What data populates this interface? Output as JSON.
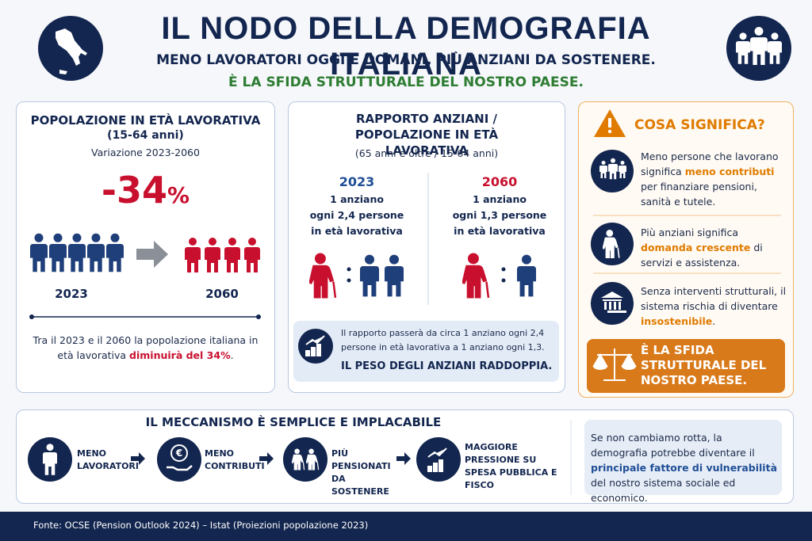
{
  "header": {
    "title": "IL NODO DELLA DEMOGRAFIA ITALIANA",
    "subtitle": "MENO LAVORATORI OGGI E DOMANI, PIÙ ANZIANI DA SOSTENERE.",
    "tagline": "È LA SFIDA STRUTTURALE DEL NOSTRO PAESE."
  },
  "working_age": {
    "title": "POPOLAZIONE IN ETÀ LAVORATIVA",
    "range": "(15-64 anni)",
    "period": "Variazione 2023-2060",
    "change": "-34",
    "change_unit": "%",
    "from_year": "2023",
    "to_year": "2060",
    "note": {
      "before": "Tra il 2023 e il 2060 la popolazione italiana in età lavorativa ",
      "highlight": "diminuirà del 34%",
      "after": "."
    }
  },
  "dependency": {
    "title": "RAPPORTO ANZIANI / POPOLAZIONE IN ETÀ LAVORATIVA",
    "subtitle": "(65 anni e oltre / 15-64 anni)",
    "columns": [
      {
        "year": "2023",
        "lines": [
          "1 anziano",
          "ogni 2,4 persone",
          "in età lavorativa"
        ]
      },
      {
        "year": "2060",
        "lines": [
          "1 anziano",
          "ogni 1,3 persone",
          "in età lavorativa"
        ]
      }
    ],
    "note": {
      "text": "Il rapporto passerà da circa 1 anziano ogni 2,4 persone in età lavorativa a 1 anziano ogni 1,3.",
      "headline": "IL PESO DEGLI ANZIANI RADDOPPIA."
    }
  },
  "meaning": {
    "title": "COSA SIGNIFICA?",
    "items": [
      {
        "before": "Meno persone che lavorano significa ",
        "highlight": "meno contributi",
        "after": " per finanziare pensioni, sanità e tutele."
      },
      {
        "before": "Più anziani significa ",
        "highlight": "domanda crescente",
        "after": " di servizi e assistenza."
      },
      {
        "before": "Senza interventi strutturali, il sistema rischia di diventare ",
        "highlight": "insostenibile",
        "after": "."
      }
    ],
    "callout": "È LA SFIDA STRUTTURALE DEL NOSTRO PAESE."
  },
  "mechanism": {
    "title": "IL MECCANISMO È SEMPLICE E IMPLACABILE",
    "steps": [
      "MENO LAVORATORI",
      "MENO CONTRIBUTI",
      "PIÙ PENSIONATI DA SOSTENERE",
      "MAGGIORE PRESSIONE SU SPESA PUBBLICA E FISCO"
    ],
    "conclusion": {
      "before": "Se non cambiamo rotta, la demografia potrebbe diventare il ",
      "highlight": "principale fattore di vulnerabilità",
      "after": " del nostro sistema sociale ed economico."
    }
  },
  "footer": {
    "source": "Fonte: OCSE (Pension Outlook 2024) – Istat (Proiezioni popolazione 2023)"
  }
}
